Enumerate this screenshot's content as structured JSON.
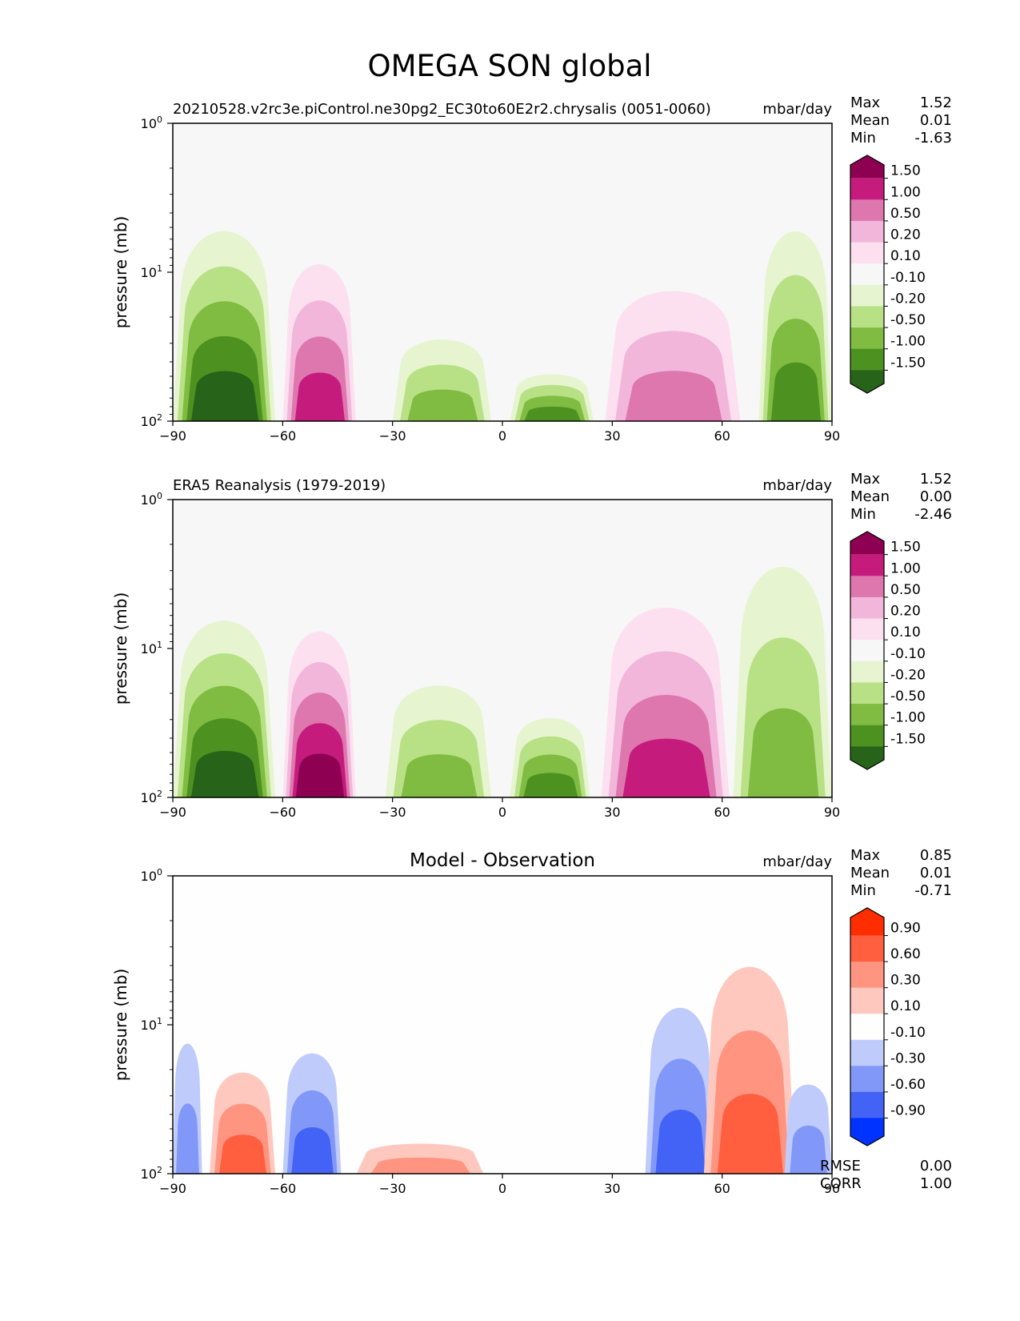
{
  "figure_title": "OMEGA SON global",
  "chart_data": [
    {
      "type": "heatmap",
      "subtype": "filled-contour",
      "title_left": "20210528.v2rc3e.piControl.ne30pg2_EC30to60E2r2.chrysalis (0051-0060)",
      "title_center": "",
      "units": "mbar/day",
      "xlabel": "",
      "ylabel": "pressure (mb)",
      "xlim": [
        -90,
        90
      ],
      "ylim": [
        100,
        1
      ],
      "yscale": "log",
      "xticks": [
        -90,
        -60,
        -30,
        0,
        30,
        60,
        90
      ],
      "xtick_labels": [
        "−90",
        "−60",
        "−30",
        "0",
        "30",
        "60",
        "90"
      ],
      "yticks": [
        1,
        10,
        100
      ],
      "ytick_labels": [
        "10^0",
        "10^1",
        "10^2"
      ],
      "stats": [
        {
          "label": "Max",
          "value": "1.52"
        },
        {
          "label": "Mean",
          "value": "0.01"
        },
        {
          "label": "Min",
          "value": "-1.63"
        }
      ],
      "colorbar": {
        "levels": [
          "1.50",
          "1.00",
          "0.50",
          "0.20",
          "0.10",
          "-0.10",
          "-0.20",
          "-0.50",
          "-1.00",
          "-1.50"
        ],
        "colors": [
          "#8e0152",
          "#c51b7d",
          "#de77ae",
          "#f1b6da",
          "#fde0ef",
          "#f7f7f7",
          "#e6f5d0",
          "#b8e186",
          "#7fbc41",
          "#4d9221",
          "#276419"
        ],
        "extend": "both"
      },
      "features": [
        {
          "desc": "negative (green) cell",
          "lat_range": [
            -90,
            -62
          ],
          "top_p": 4,
          "min_value": "-1.50"
        },
        {
          "desc": "positive (magenta) cell",
          "lat_range": [
            -60,
            -40
          ],
          "top_p": 7,
          "max_value": "1.00"
        },
        {
          "desc": "weak negative",
          "lat_range": [
            -30,
            -3
          ],
          "top_p": 25,
          "min_value": "-0.50"
        },
        {
          "desc": "weak negative",
          "lat_range": [
            2,
            25
          ],
          "top_p": 45,
          "min_value": "-1.00"
        },
        {
          "desc": "positive (pink) cell",
          "lat_range": [
            28,
            65
          ],
          "top_p": 11,
          "max_value": "0.50"
        },
        {
          "desc": "negative (green) cell",
          "lat_range": [
            70,
            90
          ],
          "top_p": 4,
          "min_value": "-1.00"
        }
      ]
    },
    {
      "type": "heatmap",
      "subtype": "filled-contour",
      "title_left": "ERA5 Reanalysis (1979-2019)",
      "title_center": "",
      "units": "mbar/day",
      "xlabel": "",
      "ylabel": "pressure (mb)",
      "xlim": [
        -90,
        90
      ],
      "ylim": [
        100,
        1
      ],
      "yscale": "log",
      "xticks": [
        -90,
        -60,
        -30,
        0,
        30,
        60,
        90
      ],
      "xtick_labels": [
        "−90",
        "−60",
        "−30",
        "0",
        "30",
        "60",
        "90"
      ],
      "yticks": [
        1,
        10,
        100
      ],
      "ytick_labels": [
        "10^0",
        "10^1",
        "10^2"
      ],
      "stats": [
        {
          "label": "Max",
          "value": "1.52"
        },
        {
          "label": "Mean",
          "value": "0.00"
        },
        {
          "label": "Min",
          "value": "-2.46"
        }
      ],
      "colorbar": {
        "levels": [
          "1.50",
          "1.00",
          "0.50",
          "0.20",
          "0.10",
          "-0.10",
          "-0.20",
          "-0.50",
          "-1.00",
          "-1.50"
        ],
        "colors": [
          "#8e0152",
          "#c51b7d",
          "#de77ae",
          "#f1b6da",
          "#fde0ef",
          "#f7f7f7",
          "#e6f5d0",
          "#b8e186",
          "#7fbc41",
          "#4d9221",
          "#276419"
        ],
        "extend": "both"
      },
      "features": [
        {
          "desc": "negative (green) cell",
          "lat_range": [
            -90,
            -62
          ],
          "top_p": 5,
          "min_value": "-1.50"
        },
        {
          "desc": "positive (magenta) cell",
          "lat_range": [
            -60,
            -40
          ],
          "top_p": 6,
          "max_value": "1.50"
        },
        {
          "desc": "weak negative",
          "lat_range": [
            -32,
            -3
          ],
          "top_p": 15,
          "min_value": "-0.50"
        },
        {
          "desc": "weak negative",
          "lat_range": [
            2,
            24
          ],
          "top_p": 26,
          "min_value": "-1.00"
        },
        {
          "desc": "positive (pink) cell",
          "lat_range": [
            27,
            62
          ],
          "top_p": 4,
          "max_value": "1.00"
        },
        {
          "desc": "negative (green) cell",
          "lat_range": [
            63,
            90
          ],
          "top_p": 2,
          "min_value": "-0.50"
        }
      ]
    },
    {
      "type": "heatmap",
      "subtype": "filled-contour",
      "title_left": "",
      "title_center": "Model - Observation",
      "units": "mbar/day",
      "xlabel": "",
      "ylabel": "pressure (mb)",
      "xlim": [
        -90,
        90
      ],
      "ylim": [
        100,
        1
      ],
      "yscale": "log",
      "xticks": [
        -90,
        -60,
        -30,
        0,
        30,
        60,
        90
      ],
      "xtick_labels": [
        "−90",
        "−60",
        "−30",
        "0",
        "30",
        "60",
        "90"
      ],
      "yticks": [
        1,
        10,
        100
      ],
      "ytick_labels": [
        "10^0",
        "10^1",
        "10^2"
      ],
      "stats": [
        {
          "label": "Max",
          "value": "0.85"
        },
        {
          "label": "Mean",
          "value": "0.01"
        },
        {
          "label": "Min",
          "value": "-0.71"
        }
      ],
      "metrics": [
        {
          "label": "RMSE",
          "value": "0.00"
        },
        {
          "label": "CORR",
          "value": "1.00"
        }
      ],
      "colorbar": {
        "levels": [
          "0.90",
          "0.60",
          "0.30",
          "0.10",
          "-0.10",
          "-0.30",
          "-0.60",
          "-0.90"
        ],
        "colors": [
          "#ff2d00",
          "#ff5e3f",
          "#ff9580",
          "#ffc8bf",
          "#fefefe",
          "#bfcbfb",
          "#8298f8",
          "#4263f5",
          "#0033ff"
        ],
        "extend": "both"
      },
      "features": [
        {
          "desc": "negative (blue)",
          "lat_range": [
            -90,
            -82
          ],
          "top_p": 11,
          "min_value": "-0.30"
        },
        {
          "desc": "positive (red)",
          "lat_range": [
            -80,
            -62
          ],
          "top_p": 18,
          "max_value": "0.60"
        },
        {
          "desc": "negative (blue)",
          "lat_range": [
            -60,
            -44
          ],
          "top_p": 13,
          "min_value": "-0.60"
        },
        {
          "desc": "weak positive",
          "lat_range": [
            -40,
            -5
          ],
          "top_p": 60,
          "max_value": "0.30"
        },
        {
          "desc": "negative (blue)",
          "lat_range": [
            39,
            58
          ],
          "top_p": 6,
          "min_value": "-0.60"
        },
        {
          "desc": "positive (red)",
          "lat_range": [
            55,
            80
          ],
          "top_p": 3,
          "max_value": "0.60"
        },
        {
          "desc": "negative (blue)",
          "lat_range": [
            77,
            90
          ],
          "top_p": 22,
          "min_value": "-0.30"
        }
      ]
    }
  ]
}
